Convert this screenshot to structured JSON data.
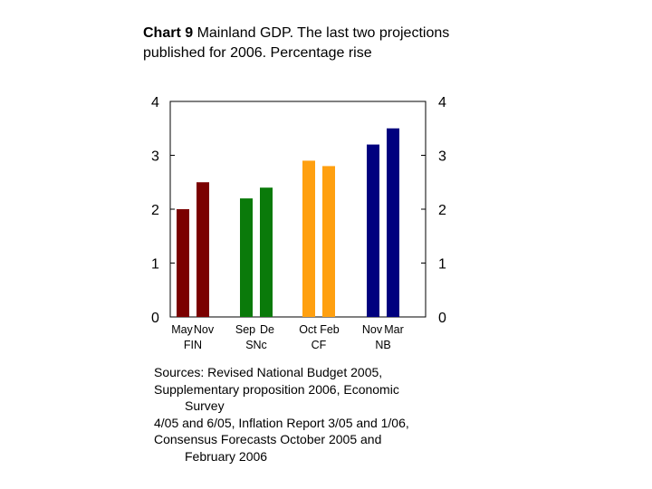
{
  "chart_data": {
    "type": "bar",
    "title_bold": "Chart 9",
    "title_rest": "Mainland GDP. The last two projections published for 2006. Percentage rise",
    "ylim": [
      0,
      4
    ],
    "y_ticks": [
      "0",
      "1",
      "2",
      "3",
      "4"
    ],
    "groups": [
      {
        "labels": [
          "May",
          "Nov"
        ],
        "source": "FIN",
        "color": "#7b0000",
        "values": [
          2.0,
          2.5
        ]
      },
      {
        "labels": [
          "Sep",
          "De"
        ],
        "source": "SNc",
        "color": "#0a7a0a",
        "values": [
          2.2,
          2.4
        ]
      },
      {
        "labels": [
          "Oct",
          "Feb"
        ],
        "source": "CF",
        "color": "#ffa010",
        "values": [
          2.9,
          2.8
        ]
      },
      {
        "labels": [
          "Nov",
          "Mar"
        ],
        "source": "NB",
        "color": "#00007f",
        "values": [
          3.2,
          3.5
        ]
      }
    ],
    "grid": false
  },
  "sources": {
    "line1": "Sources: Revised National Budget 2005,",
    "line2": "Supplementary proposition 2006, Economic",
    "line3": "Survey",
    "line4": "4/05 and 6/05, Inflation Report 3/05 and 1/06,",
    "line5": "Consensus Forecasts October 2005 and",
    "line6": "February 2006"
  }
}
